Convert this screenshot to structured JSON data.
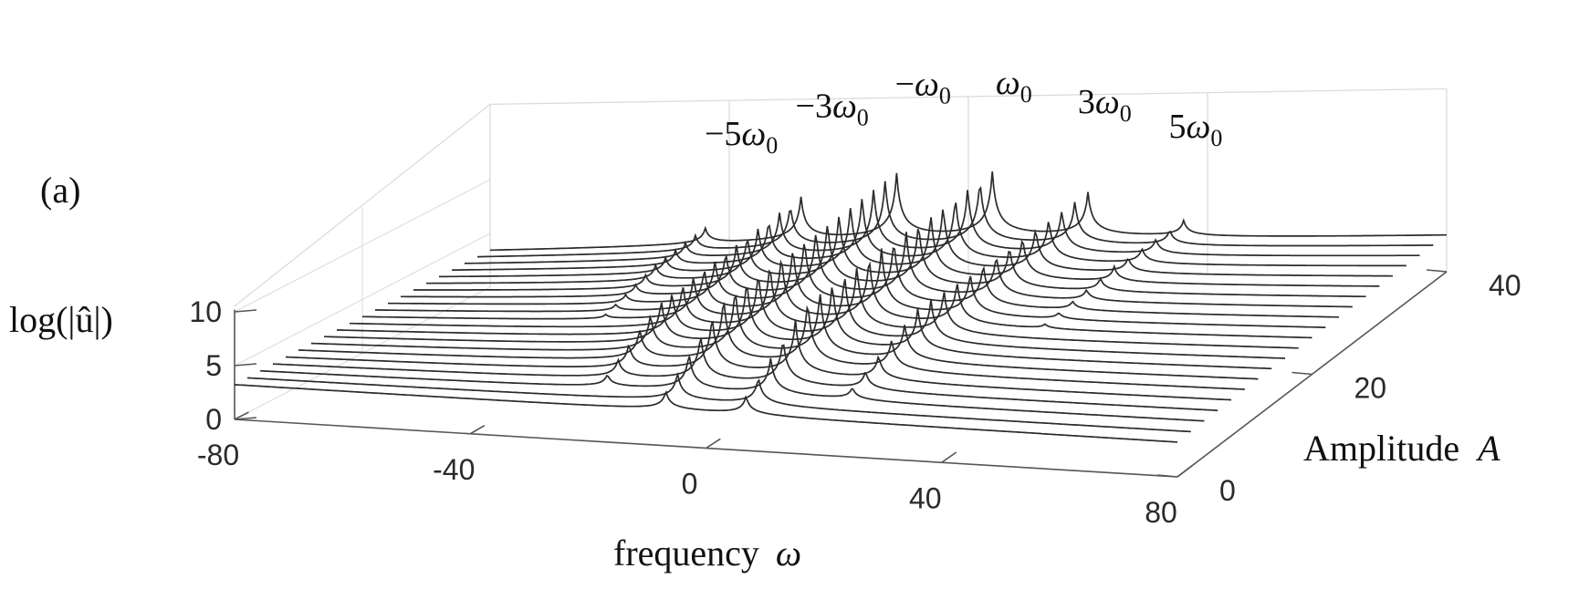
{
  "panel_label": "(a)",
  "chart_data": {
    "type": "line",
    "view": "3d-waterfall",
    "zlabel": "log(|û|)",
    "xlabel": {
      "text": "frequency",
      "symbol": "ω"
    },
    "ylabel": {
      "text": "Amplitude",
      "symbol": "A"
    },
    "x_ticks": [
      "-80",
      "-40",
      "0",
      "40",
      "80"
    ],
    "y_ticks": [
      "0",
      "20",
      "40"
    ],
    "z_ticks": [
      "0",
      "5",
      "10"
    ],
    "xlim": [
      -80,
      80
    ],
    "ylim": [
      0,
      40
    ],
    "zlim": [
      0,
      10
    ],
    "grid": true,
    "line_color": "#2b2b2b",
    "omega0": 8,
    "amplitudes": [
      0,
      2,
      4,
      6,
      8,
      10,
      12,
      14,
      16,
      18,
      20,
      22,
      24,
      26,
      28,
      30,
      32,
      34,
      36,
      38,
      40
    ],
    "baseline_level": 3.2,
    "peaks": [
      {
        "label_prefix": "−5",
        "harmonic": -5,
        "onset_amplitude": 20,
        "height": 1.5
      },
      {
        "label_prefix": "−3",
        "harmonic": -3,
        "onset_amplitude": 4,
        "height": 4.2
      },
      {
        "label_prefix": "−",
        "harmonic": -1,
        "onset_amplitude": 0,
        "height": 6.3
      },
      {
        "label_prefix": "",
        "harmonic": 1,
        "onset_amplitude": 0,
        "height": 6.3
      },
      {
        "label_prefix": "3",
        "harmonic": 3,
        "onset_amplitude": 4,
        "height": 4.2
      },
      {
        "label_prefix": "5",
        "harmonic": 5,
        "onset_amplitude": 20,
        "height": 1.5
      }
    ],
    "peak_symbol": "ω",
    "peak_subscript": "0"
  }
}
